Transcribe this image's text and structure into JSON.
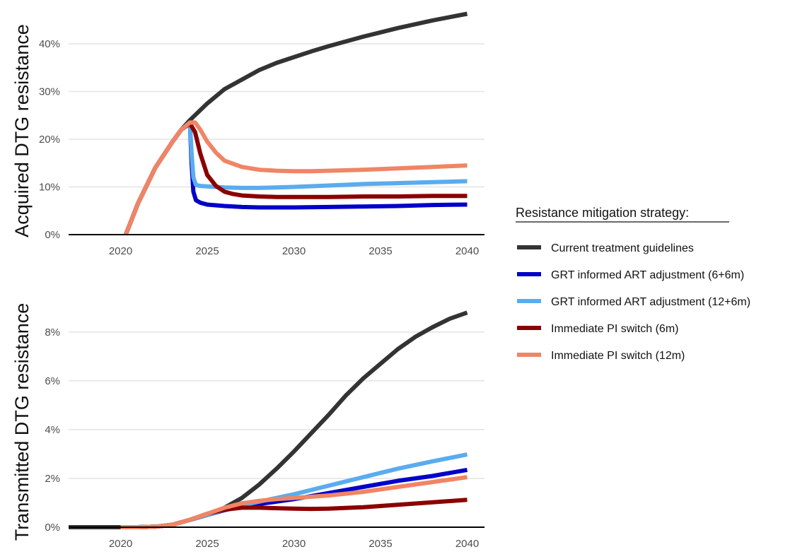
{
  "legend": {
    "title": "Resistance mitigation strategy:",
    "position": "right"
  },
  "chart_data": [
    {
      "type": "line",
      "ylabel": "Acquired DTG resistance",
      "xlabel": "",
      "xlim": [
        2017,
        2041
      ],
      "ylim": [
        0,
        48
      ],
      "x_ticks": [
        2020,
        2025,
        2030,
        2035,
        2040
      ],
      "y_ticks": [
        0,
        10,
        20,
        30,
        40
      ],
      "y_tick_labels": [
        "0%",
        "10%",
        "20%",
        "30%",
        "40%"
      ],
      "grid": "horizontal major",
      "series": [
        {
          "name": "Current treatment guidelines",
          "color": "#333333",
          "x": [
            2020.3,
            2021,
            2022,
            2023,
            2023.5,
            2024,
            2025,
            2026,
            2027,
            2028,
            2029,
            2030,
            2031,
            2032,
            2033,
            2034,
            2035,
            2036,
            2037,
            2038,
            2039,
            2040
          ],
          "y": [
            0,
            6.5,
            14,
            19.5,
            22,
            24,
            27.5,
            30.5,
            32.5,
            34.5,
            36,
            37.2,
            38.4,
            39.5,
            40.5,
            41.5,
            42.4,
            43.3,
            44.1,
            44.9,
            45.6,
            46.3
          ]
        },
        {
          "name": "GRT informed ART adjustment (6+6m)",
          "color": "#0000c8",
          "x": [
            2020.3,
            2021,
            2022,
            2023,
            2023.5,
            2024,
            2024.1,
            2024.2,
            2024.35,
            2024.6,
            2025,
            2026,
            2027,
            2028,
            2029,
            2030,
            2032,
            2034,
            2036,
            2038,
            2040
          ],
          "y": [
            0,
            6.5,
            14,
            19.5,
            22,
            23.5,
            15,
            9,
            7.2,
            6.7,
            6.3,
            6.0,
            5.8,
            5.7,
            5.7,
            5.7,
            5.8,
            5.9,
            6.0,
            6.2,
            6.3
          ]
        },
        {
          "name": "GRT informed ART adjustment (12+6m)",
          "color": "#5aacee",
          "x": [
            2020.3,
            2021,
            2022,
            2023,
            2023.5,
            2024,
            2024.1,
            2024.2,
            2024.35,
            2024.6,
            2025,
            2026,
            2027,
            2028,
            2029,
            2030,
            2032,
            2034,
            2036,
            2038,
            2040
          ],
          "y": [
            0,
            6.5,
            14,
            19.5,
            22,
            23.5,
            17,
            12,
            10.4,
            10.2,
            10.1,
            9.9,
            9.8,
            9.8,
            9.9,
            10.0,
            10.3,
            10.6,
            10.8,
            11.0,
            11.2
          ]
        },
        {
          "name": "Immediate PI switch (6m)",
          "color": "#8b0000",
          "x": [
            2020.3,
            2021,
            2022,
            2023,
            2023.5,
            2024,
            2024.3,
            2024.6,
            2025,
            2025.5,
            2026,
            2026.5,
            2027,
            2028,
            2029,
            2030,
            2032,
            2034,
            2036,
            2038,
            2040
          ],
          "y": [
            0,
            6.5,
            14,
            19.5,
            22,
            23.3,
            21.5,
            17,
            12.5,
            10.2,
            9.0,
            8.5,
            8.2,
            8.0,
            7.9,
            7.9,
            7.9,
            8.0,
            8.0,
            8.1,
            8.1
          ]
        },
        {
          "name": "Immediate PI switch (12m)",
          "color": "#f08565",
          "x": [
            2020.3,
            2021,
            2022,
            2023,
            2023.5,
            2024,
            2024.3,
            2024.6,
            2025,
            2025.5,
            2026,
            2027,
            2028,
            2029,
            2030,
            2031,
            2032,
            2034,
            2036,
            2038,
            2040
          ],
          "y": [
            0,
            6.5,
            14,
            19.5,
            22,
            23.5,
            23.5,
            22,
            19.5,
            17.2,
            15.5,
            14.2,
            13.6,
            13.4,
            13.3,
            13.3,
            13.4,
            13.6,
            13.9,
            14.2,
            14.5
          ]
        }
      ]
    },
    {
      "type": "line",
      "ylabel": "Transmitted DTG resistance",
      "xlabel": "",
      "xlim": [
        2017,
        2041
      ],
      "ylim": [
        0,
        9.3
      ],
      "x_ticks": [
        2020,
        2025,
        2030,
        2035,
        2040
      ],
      "y_ticks": [
        0,
        2,
        4,
        6,
        8
      ],
      "y_tick_labels": [
        "0%",
        "2%",
        "4%",
        "6%",
        "8%"
      ],
      "grid": "horizontal major",
      "series": [
        {
          "name": "Current treatment guidelines",
          "color": "#333333",
          "x": [
            2017,
            2018,
            2019,
            2020,
            2021,
            2022,
            2023,
            2024,
            2025,
            2026,
            2027,
            2028,
            2029,
            2030,
            2031,
            2032,
            2033,
            2034,
            2035,
            2036,
            2037,
            2038,
            2039,
            2040
          ],
          "y": [
            0,
            0,
            0,
            0,
            0,
            0.02,
            0.1,
            0.3,
            0.5,
            0.8,
            1.2,
            1.75,
            2.4,
            3.1,
            3.85,
            4.6,
            5.4,
            6.1,
            6.7,
            7.3,
            7.8,
            8.2,
            8.55,
            8.8
          ]
        },
        {
          "name": "GRT informed ART adjustment (6+6m)",
          "color": "#0000c8",
          "x": [
            2020,
            2021,
            2022,
            2023,
            2024,
            2025,
            2026,
            2027,
            2028,
            2030,
            2032,
            2034,
            2036,
            2038,
            2040
          ],
          "y": [
            0,
            0,
            0.02,
            0.1,
            0.3,
            0.5,
            0.7,
            0.85,
            0.95,
            1.15,
            1.4,
            1.65,
            1.9,
            2.1,
            2.35
          ]
        },
        {
          "name": "GRT informed ART adjustment (12+6m)",
          "color": "#5aacee",
          "x": [
            2020,
            2021,
            2022,
            2023,
            2024,
            2025,
            2026,
            2027,
            2028,
            2030,
            2032,
            2034,
            2036,
            2038,
            2040
          ],
          "y": [
            0,
            0,
            0.02,
            0.1,
            0.3,
            0.5,
            0.72,
            0.9,
            1.05,
            1.35,
            1.7,
            2.05,
            2.4,
            2.7,
            2.98
          ]
        },
        {
          "name": "Immediate PI switch (6m)",
          "color": "#8b0000",
          "x": [
            2020,
            2021,
            2022,
            2023,
            2024,
            2025,
            2026,
            2027,
            2028,
            2029,
            2030,
            2031,
            2032,
            2034,
            2036,
            2038,
            2040
          ],
          "y": [
            0,
            0,
            0.02,
            0.1,
            0.3,
            0.55,
            0.72,
            0.8,
            0.8,
            0.78,
            0.76,
            0.75,
            0.76,
            0.82,
            0.92,
            1.02,
            1.12
          ]
        },
        {
          "name": "Immediate PI switch (12m)",
          "color": "#f08565",
          "x": [
            2020,
            2021,
            2022,
            2023,
            2024,
            2025,
            2026,
            2027,
            2028,
            2029,
            2030,
            2031,
            2032,
            2034,
            2036,
            2038,
            2040
          ],
          "y": [
            0,
            0,
            0.02,
            0.1,
            0.3,
            0.55,
            0.8,
            0.98,
            1.08,
            1.15,
            1.2,
            1.25,
            1.3,
            1.45,
            1.65,
            1.85,
            2.05
          ]
        }
      ]
    }
  ]
}
